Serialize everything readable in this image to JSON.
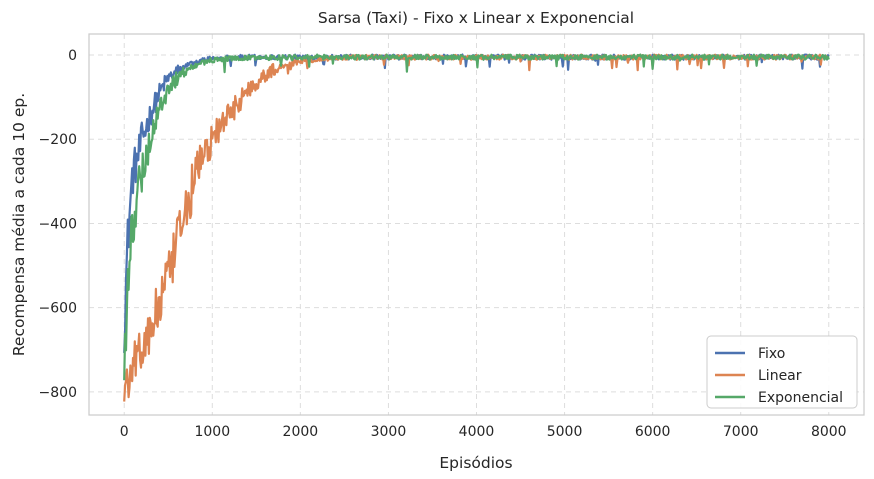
{
  "chart_data": {
    "type": "line",
    "title": "Sarsa (Taxi) - Fixo x Linear x Exponencial",
    "xlabel": "Episódios",
    "ylabel": "Recompensa média a cada 10 ep.",
    "xlim": [
      -400,
      8400
    ],
    "ylim": [
      -855,
      50
    ],
    "xticks": [
      0,
      1000,
      2000,
      3000,
      4000,
      5000,
      6000,
      7000,
      8000
    ],
    "yticks": [
      0,
      -200,
      -400,
      -600,
      -800
    ],
    "xtick_labels": [
      "0",
      "1000",
      "2000",
      "3000",
      "4000",
      "5000",
      "6000",
      "7000",
      "8000"
    ],
    "ytick_labels": [
      "0",
      "−200",
      "−400",
      "−600",
      "−800"
    ],
    "grid": true,
    "legend_position": "lower-right",
    "series": [
      {
        "name": "Fixo",
        "color": "#4c72b0",
        "x": [
          0,
          20,
          40,
          60,
          80,
          100,
          130,
          160,
          200,
          250,
          300,
          350,
          400,
          450,
          500,
          600,
          700,
          800,
          900,
          1000,
          1200,
          1500,
          2000,
          3000,
          4000,
          5000,
          6000,
          7000,
          8000
        ],
        "y": [
          -650,
          -540,
          -440,
          -380,
          -320,
          -280,
          -260,
          -240,
          -200,
          -170,
          -140,
          -115,
          -90,
          -70,
          -55,
          -40,
          -25,
          -18,
          -12,
          -8,
          -6,
          -5,
          -5,
          -5,
          -5,
          -5,
          -5,
          -5,
          -5
        ]
      },
      {
        "name": "Linear",
        "color": "#dd8452",
        "x": [
          0,
          50,
          100,
          150,
          200,
          250,
          300,
          350,
          400,
          450,
          500,
          550,
          600,
          650,
          700,
          750,
          800,
          850,
          900,
          950,
          1000,
          1100,
          1200,
          1300,
          1400,
          1500,
          1600,
          1700,
          1800,
          2000,
          2200,
          2500,
          3000,
          4000,
          5000,
          6000,
          7000,
          8000
        ],
        "y": [
          -790,
          -760,
          -730,
          -710,
          -690,
          -680,
          -655,
          -620,
          -590,
          -560,
          -530,
          -490,
          -450,
          -410,
          -370,
          -330,
          -290,
          -260,
          -240,
          -220,
          -200,
          -170,
          -140,
          -110,
          -85,
          -65,
          -48,
          -35,
          -25,
          -15,
          -10,
          -6,
          -5,
          -5,
          -5,
          -5,
          -5,
          -5
        ]
      },
      {
        "name": "Exponencial",
        "color": "#55a868",
        "x": [
          0,
          20,
          50,
          80,
          110,
          140,
          170,
          200,
          250,
          300,
          350,
          400,
          450,
          500,
          600,
          700,
          800,
          900,
          1000,
          1200,
          1500,
          2000,
          3000,
          4000,
          5000,
          6000,
          7000,
          8000
        ],
        "y": [
          -780,
          -650,
          -520,
          -440,
          -390,
          -350,
          -310,
          -280,
          -240,
          -200,
          -160,
          -130,
          -100,
          -80,
          -55,
          -35,
          -25,
          -18,
          -12,
          -8,
          -6,
          -5,
          -5,
          -5,
          -5,
          -5,
          -5,
          -5
        ]
      }
    ]
  }
}
